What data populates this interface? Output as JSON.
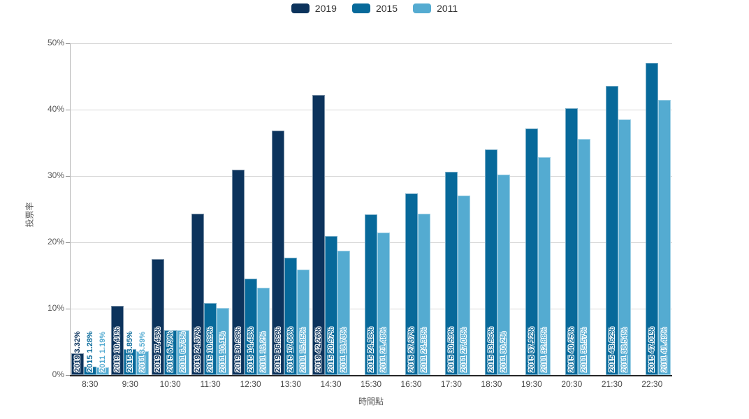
{
  "legend": {
    "items": [
      {
        "label": "2019",
        "color": "#0c335c"
      },
      {
        "label": "2015",
        "color": "#07699a"
      },
      {
        "label": "2011",
        "color": "#54abd1"
      }
    ]
  },
  "colors": {
    "grid": "#d6d6d6",
    "x_axis": "#262626",
    "y_axis": "#b5b5b5",
    "tick_label": "#595959"
  },
  "chart_data": {
    "type": "bar",
    "title": "",
    "xlabel": "時間點",
    "ylabel": "投票率",
    "ylim": [
      0,
      50
    ],
    "ytick_labels": [
      "0%",
      "10%",
      "20%",
      "30%",
      "40%",
      "50%"
    ],
    "grid": true,
    "legend_position": "top",
    "bar_value_label_format": "{series} {value}%",
    "categories": [
      "8:30",
      "9:30",
      "10:30",
      "11:30",
      "12:30",
      "13:30",
      "14:30",
      "15:30",
      "16:30",
      "17:30",
      "18:30",
      "19:30",
      "20:30",
      "21:30",
      "22:30"
    ],
    "series": [
      {
        "name": "2019",
        "color": "#0c335c",
        "values": [
          3.32,
          10.41,
          17.43,
          24.37,
          30.98,
          36.89,
          42.26,
          null,
          null,
          null,
          null,
          null,
          null,
          null,
          null
        ]
      },
      {
        "name": "2015",
        "color": "#07699a",
        "values": [
          1.28,
          3.85,
          6.79,
          10.89,
          14.48,
          17.66,
          20.97,
          24.18,
          27.37,
          30.59,
          33.96,
          37.12,
          40.25,
          43.62,
          47.01
        ]
      },
      {
        "name": "2011",
        "color": "#54abd1",
        "values": [
          1.19,
          3.59,
          6.73,
          10.1,
          13.2,
          15.85,
          18.73,
          21.48,
          24.33,
          27.08,
          30.2,
          32.88,
          35.57,
          38.54,
          41.49
        ]
      }
    ]
  }
}
